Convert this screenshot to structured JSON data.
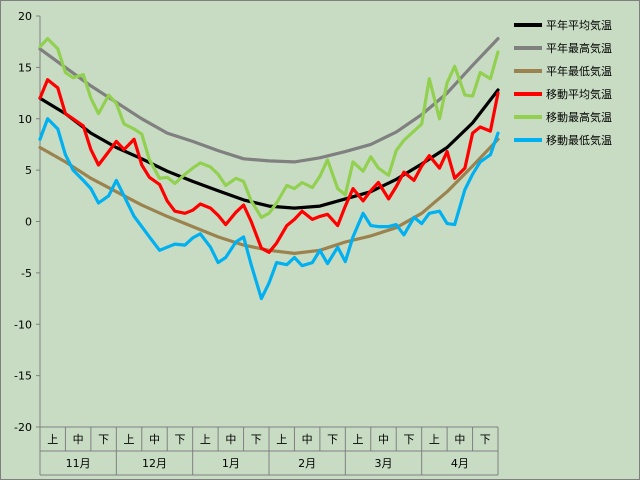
{
  "chart_data": {
    "type": "line",
    "ylim": [
      -20,
      20
    ],
    "yticks": [
      20,
      15,
      10,
      5,
      0,
      -5,
      -10,
      -15,
      -20
    ],
    "x_range": [
      0,
      18
    ],
    "x_sub_labels": [
      "上",
      "中",
      "下",
      "上",
      "中",
      "下",
      "上",
      "中",
      "下",
      "上",
      "中",
      "下",
      "上",
      "中",
      "下",
      "上",
      "中",
      "下"
    ],
    "month_labels": [
      "11月",
      "12月",
      "1月",
      "2月",
      "3月",
      "4月"
    ],
    "legend_position": "right",
    "grid": false,
    "series": [
      {
        "name": "平年平均気温",
        "color": "#000000",
        "x": [
          0,
          1,
          2,
          3,
          4,
          5,
          6,
          7,
          8,
          9,
          10,
          11,
          12,
          13,
          14,
          15,
          16,
          17,
          18
        ],
        "y": [
          12.0,
          10.5,
          8.6,
          7.2,
          6.1,
          4.9,
          3.9,
          3.0,
          2.1,
          1.5,
          1.3,
          1.5,
          2.2,
          2.9,
          4.1,
          5.6,
          7.2,
          9.6,
          12.8
        ]
      },
      {
        "name": "平年最高気温",
        "color": "#808080",
        "x": [
          0,
          1,
          2,
          3,
          4,
          5,
          6,
          7,
          8,
          9,
          10,
          11,
          12,
          13,
          14,
          15,
          16,
          17,
          18
        ],
        "y": [
          16.8,
          15.0,
          13.2,
          11.6,
          10.0,
          8.6,
          7.8,
          6.9,
          6.1,
          5.9,
          5.8,
          6.2,
          6.8,
          7.5,
          8.7,
          10.4,
          12.5,
          15.2,
          17.8
        ]
      },
      {
        "name": "平年最低気温",
        "color": "#9b8350",
        "x": [
          0,
          1,
          2,
          3,
          4,
          5,
          6,
          7,
          8,
          9,
          10,
          11,
          12,
          13,
          14,
          15,
          16,
          17,
          18
        ],
        "y": [
          7.2,
          5.8,
          4.2,
          2.9,
          1.6,
          0.5,
          -0.5,
          -1.5,
          -2.3,
          -2.8,
          -3.1,
          -2.8,
          -2.0,
          -1.4,
          -0.6,
          0.8,
          2.9,
          5.4,
          8.0
        ]
      },
      {
        "name": "移動平均気温",
        "color": "#ff0000",
        "x": [
          0,
          0.3,
          0.7,
          1.0,
          1.3,
          1.7,
          2.0,
          2.3,
          2.7,
          3.0,
          3.3,
          3.7,
          4.0,
          4.3,
          4.7,
          5.0,
          5.3,
          5.7,
          6.0,
          6.3,
          6.7,
          7.0,
          7.3,
          7.7,
          8.0,
          8.3,
          8.7,
          9.0,
          9.3,
          9.7,
          10.0,
          10.3,
          10.7,
          11.0,
          11.3,
          11.7,
          12.0,
          12.3,
          12.7,
          13.0,
          13.3,
          13.7,
          14.0,
          14.3,
          14.7,
          15.0,
          15.3,
          15.7,
          16.0,
          16.3,
          16.7,
          17.0,
          17.3,
          17.7,
          18.0
        ],
        "y": [
          12.0,
          13.8,
          13.0,
          10.5,
          10.0,
          9.3,
          7.0,
          5.5,
          6.8,
          7.8,
          7.0,
          8.0,
          5.5,
          4.3,
          3.6,
          2.0,
          1.0,
          0.8,
          1.1,
          1.7,
          1.3,
          0.6,
          -0.3,
          0.9,
          1.6,
          0.0,
          -2.6,
          -3.0,
          -2.1,
          -0.4,
          0.2,
          1.0,
          0.2,
          0.5,
          0.7,
          -0.4,
          1.5,
          3.2,
          2.0,
          3.0,
          3.8,
          2.2,
          3.4,
          4.8,
          4.0,
          5.4,
          6.4,
          5.2,
          6.8,
          4.2,
          5.2,
          8.6,
          9.2,
          8.8,
          12.5
        ]
      },
      {
        "name": "移動最高気温",
        "color": "#92d050",
        "x": [
          0,
          0.3,
          0.7,
          1.0,
          1.3,
          1.7,
          2.0,
          2.3,
          2.7,
          3.0,
          3.3,
          3.7,
          4.0,
          4.3,
          4.7,
          5.0,
          5.3,
          5.7,
          6.0,
          6.3,
          6.7,
          7.0,
          7.3,
          7.7,
          8.0,
          8.3,
          8.7,
          9.0,
          9.3,
          9.7,
          10.0,
          10.3,
          10.7,
          11.0,
          11.3,
          11.7,
          12.0,
          12.3,
          12.7,
          13.0,
          13.3,
          13.7,
          14.0,
          14.3,
          14.7,
          15.0,
          15.3,
          15.7,
          16.0,
          16.3,
          16.7,
          17.0,
          17.3,
          17.7,
          18.0
        ],
        "y": [
          17.0,
          17.8,
          16.8,
          14.5,
          14.0,
          14.3,
          12.0,
          10.5,
          12.3,
          11.5,
          9.5,
          9.0,
          8.5,
          6.0,
          4.2,
          4.3,
          3.7,
          4.6,
          5.2,
          5.7,
          5.3,
          4.6,
          3.5,
          4.2,
          3.9,
          2.0,
          0.4,
          0.8,
          1.8,
          3.5,
          3.2,
          3.8,
          3.3,
          4.4,
          6.0,
          3.2,
          2.6,
          5.8,
          4.9,
          6.3,
          5.2,
          4.5,
          6.9,
          7.9,
          8.8,
          9.5,
          13.9,
          10.0,
          13.5,
          15.1,
          12.3,
          12.2,
          14.5,
          13.9,
          16.5
        ]
      },
      {
        "name": "移動最低気温",
        "color": "#00b0f0",
        "x": [
          0,
          0.3,
          0.7,
          1.0,
          1.3,
          1.7,
          2.0,
          2.3,
          2.7,
          3.0,
          3.3,
          3.7,
          4.0,
          4.3,
          4.7,
          5.0,
          5.3,
          5.7,
          6.0,
          6.3,
          6.7,
          7.0,
          7.3,
          7.7,
          8.0,
          8.3,
          8.7,
          9.0,
          9.3,
          9.7,
          10.0,
          10.3,
          10.7,
          11.0,
          11.3,
          11.7,
          12.0,
          12.3,
          12.7,
          13.0,
          13.3,
          13.7,
          14.0,
          14.3,
          14.7,
          15.0,
          15.3,
          15.7,
          16.0,
          16.3,
          16.7,
          17.0,
          17.3,
          17.7,
          18.0
        ],
        "y": [
          8.0,
          10.0,
          9.0,
          6.5,
          5.0,
          4.0,
          3.2,
          1.8,
          2.5,
          4.0,
          2.5,
          0.5,
          -0.5,
          -1.5,
          -2.8,
          -2.5,
          -2.2,
          -2.3,
          -1.6,
          -1.2,
          -2.5,
          -4.0,
          -3.5,
          -2.0,
          -1.5,
          -4.2,
          -7.5,
          -6.0,
          -4.0,
          -4.2,
          -3.5,
          -4.3,
          -4.0,
          -2.8,
          -4.1,
          -2.5,
          -3.9,
          -1.5,
          0.8,
          -0.4,
          -0.5,
          -0.5,
          -0.3,
          -1.3,
          0.4,
          -0.2,
          0.8,
          1.0,
          -0.2,
          -0.3,
          3.1,
          4.6,
          5.8,
          6.5,
          8.6
        ]
      }
    ]
  }
}
